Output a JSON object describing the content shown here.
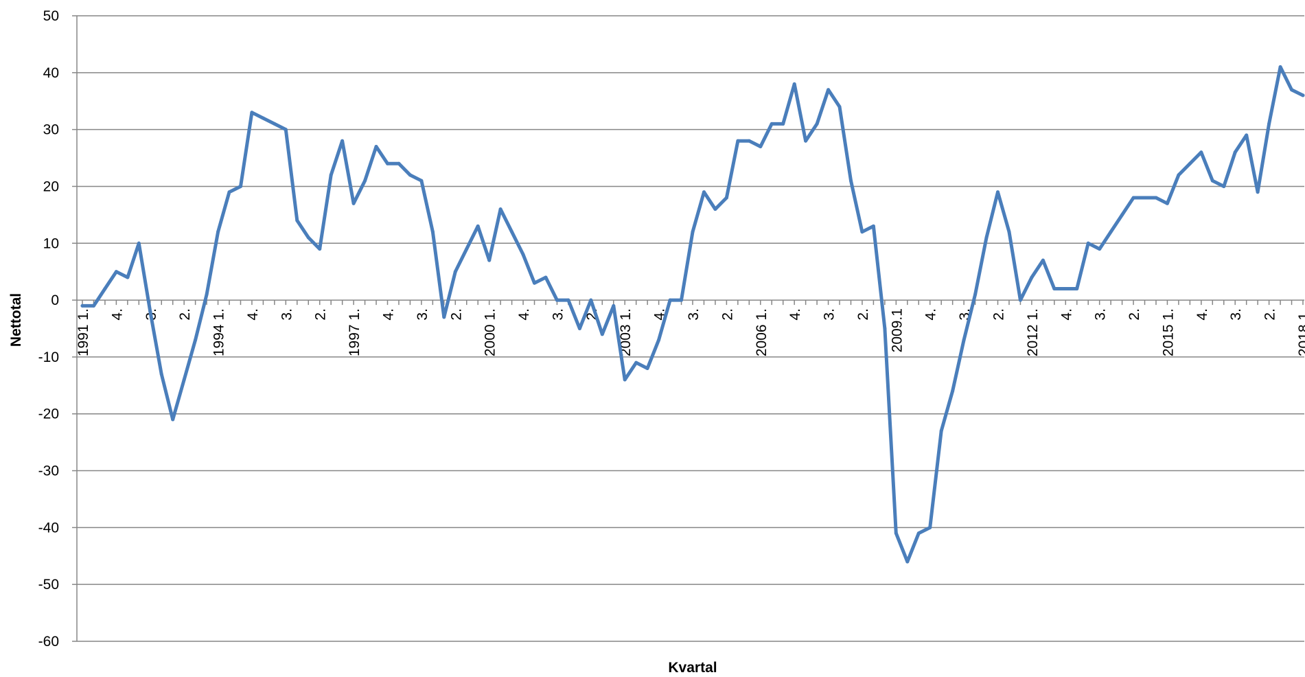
{
  "chart_data": {
    "type": "line",
    "xlabel": "Kvartal",
    "ylabel": "Nettotal",
    "ylim": [
      -60,
      50
    ],
    "y_ticks": [
      50,
      40,
      30,
      20,
      10,
      0,
      -10,
      -20,
      -30,
      -40,
      -50,
      -60
    ],
    "grid": true,
    "line_color": "#4A7EBB",
    "x_tick_labels": [
      {
        "index": 0,
        "label": "1991 1."
      },
      {
        "index": 3,
        "label": "4."
      },
      {
        "index": 6,
        "label": "3."
      },
      {
        "index": 9,
        "label": "2."
      },
      {
        "index": 12,
        "label": "1994 1."
      },
      {
        "index": 15,
        "label": "4."
      },
      {
        "index": 18,
        "label": "3."
      },
      {
        "index": 21,
        "label": "2."
      },
      {
        "index": 24,
        "label": "1997 1."
      },
      {
        "index": 27,
        "label": "4."
      },
      {
        "index": 30,
        "label": "3."
      },
      {
        "index": 33,
        "label": "2."
      },
      {
        "index": 36,
        "label": "2000 1."
      },
      {
        "index": 39,
        "label": "4."
      },
      {
        "index": 42,
        "label": "3."
      },
      {
        "index": 45,
        "label": "2."
      },
      {
        "index": 48,
        "label": "2003 1."
      },
      {
        "index": 51,
        "label": "4."
      },
      {
        "index": 54,
        "label": "3."
      },
      {
        "index": 57,
        "label": "2."
      },
      {
        "index": 60,
        "label": "2006 1."
      },
      {
        "index": 63,
        "label": "4."
      },
      {
        "index": 66,
        "label": "3."
      },
      {
        "index": 69,
        "label": "2."
      },
      {
        "index": 72,
        "label": "2009.1"
      },
      {
        "index": 75,
        "label": "4."
      },
      {
        "index": 78,
        "label": "3."
      },
      {
        "index": 81,
        "label": "2."
      },
      {
        "index": 84,
        "label": "2012 1."
      },
      {
        "index": 87,
        "label": "4."
      },
      {
        "index": 90,
        "label": "3."
      },
      {
        "index": 93,
        "label": "2."
      },
      {
        "index": 96,
        "label": "2015 1."
      },
      {
        "index": 99,
        "label": "4."
      },
      {
        "index": 102,
        "label": "3."
      },
      {
        "index": 105,
        "label": "2."
      },
      {
        "index": 108,
        "label": "2018 1."
      }
    ],
    "series": [
      {
        "values": [
          -1,
          -1,
          2,
          5,
          4,
          10,
          -2,
          -13,
          -21,
          -14,
          -7,
          1,
          12,
          19,
          20,
          33,
          32,
          31,
          30,
          14,
          11,
          9,
          22,
          28,
          17,
          21,
          27,
          24,
          24,
          22,
          21,
          12,
          -3,
          5,
          9,
          13,
          7,
          16,
          12,
          8,
          3,
          4,
          0,
          0,
          -5,
          0,
          -6,
          -1,
          -14,
          -11,
          -12,
          -7,
          0,
          0,
          12,
          19,
          16,
          18,
          28,
          28,
          27,
          31,
          31,
          38,
          28,
          31,
          37,
          34,
          21,
          12,
          13,
          -5,
          -41,
          -46,
          -41,
          -40,
          -23,
          -16,
          -7,
          1,
          11,
          19,
          12,
          0,
          4,
          7,
          2,
          2,
          2,
          10,
          9,
          12,
          15,
          18,
          18,
          18,
          17,
          22,
          24,
          26,
          21,
          20,
          26,
          29,
          19,
          31,
          41,
          37,
          36
        ]
      }
    ]
  }
}
